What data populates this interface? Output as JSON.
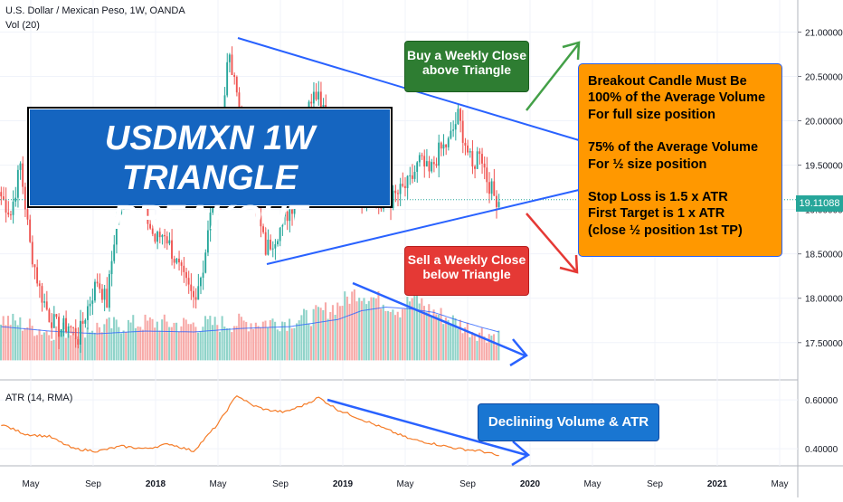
{
  "header": {
    "symbol_line": "U.S. Dollar / Mexican Peso, 1W, OANDA",
    "vol_label": "Vol (20)",
    "atr_label": "ATR (14, RMA)"
  },
  "title_box": {
    "line1": "USDMXN 1W",
    "line2": "TRIANGLE BREAKOUT",
    "color": "#1565c0"
  },
  "buy_box": {
    "line1": "Buy a Weekly Close",
    "line2": "above Triangle",
    "color": "#2e7d32"
  },
  "sell_box": {
    "line1": "Sell a Weekly Close",
    "line2": "below Triangle",
    "color": "#e53935"
  },
  "rules_box": {
    "color": "#ff9800",
    "lines": [
      "Breakout Candle Must Be",
      "100% of the Average Volume",
      "For full size position",
      "",
      "75% of the Average Volume",
      "For ½ size position",
      "",
      "Stop Loss is 1.5 x ATR",
      "First Target is 1 x ATR",
      "(close ½ position 1st TP)"
    ]
  },
  "decline_box": {
    "text": "Decliniing Volume & ATR",
    "color": "#1976d2"
  },
  "price_badge": {
    "value": "19.11088",
    "color": "#26a69a"
  },
  "chart_data": {
    "type": "candlestick",
    "title": "U.S. Dollar / Mexican Peso, 1W, OANDA",
    "price_axis": {
      "ticks": [
        "21.00000",
        "20.50000",
        "20.00000",
        "19.50000",
        "19.00000",
        "18.50000",
        "18.00000",
        "17.50000"
      ],
      "range": [
        17.1,
        21.3
      ]
    },
    "atr_axis": {
      "ticks": [
        "0.60000",
        "0.40000"
      ],
      "range": [
        0.33,
        0.66
      ]
    },
    "x_axis": {
      "ticks": [
        "May",
        "Sep",
        "2018",
        "May",
        "Sep",
        "2019",
        "May",
        "Sep",
        "2020",
        "May",
        "Sep",
        "2021",
        "May"
      ]
    },
    "colors": {
      "up": "#26a69a",
      "down": "#ef5350",
      "triangle": "#2962ff",
      "atr": "#f57c28",
      "vol_ma": "#2962ff"
    },
    "last_price": 19.11088,
    "price_anchors": [
      [
        0,
        19.15
      ],
      [
        4,
        18.95
      ],
      [
        8,
        19.5
      ],
      [
        12,
        18.6
      ],
      [
        16,
        18.1
      ],
      [
        20,
        17.8
      ],
      [
        24,
        17.65
      ],
      [
        28,
        17.7
      ],
      [
        32,
        17.55
      ],
      [
        36,
        17.9
      ],
      [
        40,
        18.2
      ],
      [
        44,
        17.95
      ],
      [
        48,
        18.9
      ],
      [
        52,
        19.2
      ],
      [
        56,
        19.6
      ],
      [
        60,
        18.95
      ],
      [
        64,
        18.65
      ],
      [
        68,
        18.75
      ],
      [
        72,
        18.45
      ],
      [
        76,
        18.2
      ],
      [
        80,
        18.0
      ],
      [
        84,
        18.35
      ],
      [
        88,
        19.1
      ],
      [
        92,
        19.85
      ],
      [
        94,
        20.75
      ],
      [
        98,
        20.3
      ],
      [
        102,
        19.5
      ],
      [
        106,
        19.0
      ],
      [
        110,
        18.55
      ],
      [
        114,
        18.7
      ],
      [
        118,
        18.9
      ],
      [
        122,
        19.1
      ],
      [
        126,
        19.9
      ],
      [
        130,
        20.4
      ],
      [
        134,
        20.2
      ],
      [
        138,
        19.9
      ],
      [
        142,
        19.6
      ],
      [
        146,
        19.4
      ],
      [
        150,
        19.15
      ],
      [
        154,
        19.2
      ],
      [
        158,
        19.0
      ],
      [
        162,
        19.1
      ],
      [
        166,
        19.2
      ],
      [
        170,
        19.3
      ],
      [
        174,
        19.55
      ],
      [
        178,
        19.4
      ],
      [
        182,
        19.65
      ],
      [
        186,
        19.75
      ],
      [
        190,
        20.05
      ],
      [
        193,
        19.75
      ],
      [
        196,
        19.45
      ],
      [
        199,
        19.7
      ],
      [
        202,
        19.35
      ],
      [
        205,
        19.15
      ],
      [
        207,
        19.11
      ]
    ],
    "volume_anchors": [
      [
        0,
        17.75
      ],
      [
        20,
        17.6
      ],
      [
        40,
        17.65
      ],
      [
        60,
        17.7
      ],
      [
        80,
        17.68
      ],
      [
        100,
        17.7
      ],
      [
        120,
        17.72
      ],
      [
        130,
        17.78
      ],
      [
        140,
        17.9
      ],
      [
        148,
        18.05
      ],
      [
        158,
        17.95
      ],
      [
        166,
        17.85
      ],
      [
        172,
        18.0
      ],
      [
        178,
        17.85
      ],
      [
        186,
        17.75
      ],
      [
        196,
        17.62
      ],
      [
        207,
        17.55
      ]
    ],
    "volume_ma_anchors": [
      [
        0,
        17.68
      ],
      [
        20,
        17.63
      ],
      [
        40,
        17.6
      ],
      [
        60,
        17.63
      ],
      [
        80,
        17.62
      ],
      [
        100,
        17.66
      ],
      [
        120,
        17.68
      ],
      [
        140,
        17.76
      ],
      [
        150,
        17.86
      ],
      [
        160,
        17.9
      ],
      [
        170,
        17.88
      ],
      [
        180,
        17.84
      ],
      [
        190,
        17.75
      ],
      [
        200,
        17.67
      ],
      [
        207,
        17.62
      ]
    ],
    "atr_anchors": [
      [
        0,
        0.5
      ],
      [
        10,
        0.46
      ],
      [
        20,
        0.45
      ],
      [
        30,
        0.4
      ],
      [
        40,
        0.39
      ],
      [
        50,
        0.41
      ],
      [
        60,
        0.4
      ],
      [
        70,
        0.42
      ],
      [
        80,
        0.39
      ],
      [
        90,
        0.5
      ],
      [
        98,
        0.62
      ],
      [
        104,
        0.58
      ],
      [
        110,
        0.56
      ],
      [
        118,
        0.55
      ],
      [
        126,
        0.58
      ],
      [
        132,
        0.61
      ],
      [
        140,
        0.56
      ],
      [
        150,
        0.52
      ],
      [
        160,
        0.48
      ],
      [
        170,
        0.44
      ],
      [
        180,
        0.42
      ],
      [
        190,
        0.4
      ],
      [
        200,
        0.39
      ],
      [
        207,
        0.37
      ]
    ]
  }
}
